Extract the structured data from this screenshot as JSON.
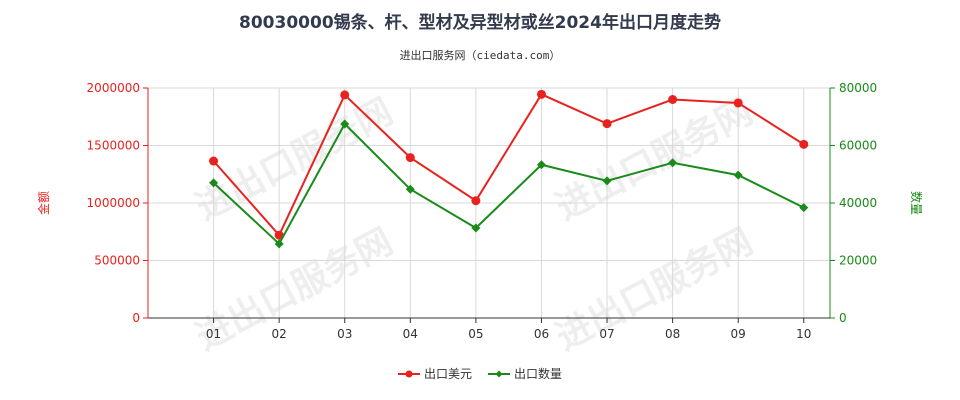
{
  "header": {
    "title": "80030000锡条、杆、型材及异型材或丝2024年出口月度走势",
    "subtitle": "进出口服务网（ciedata.com）"
  },
  "colors": {
    "amount": "#e8231f",
    "quantity": "#1a8a1a",
    "grid": "#d9d9d9",
    "axis_text": "#333333"
  },
  "watermark_text": "进出口服务网",
  "chart_data": {
    "type": "line",
    "categories": [
      "01",
      "02",
      "03",
      "04",
      "05",
      "06",
      "07",
      "08",
      "09",
      "10"
    ],
    "y_left": {
      "label": "金额",
      "min": 0,
      "max": 2000000,
      "ticks": [
        0,
        500000,
        1000000,
        1500000,
        2000000
      ]
    },
    "y_right": {
      "label": "数量",
      "min": 0,
      "max": 80000,
      "ticks": [
        0,
        20000,
        40000,
        60000,
        80000
      ]
    },
    "grid": true,
    "legend_position": "bottom",
    "series": [
      {
        "name": "出口美元",
        "axis": "left",
        "color": "#e8231f",
        "values": [
          1365000,
          720000,
          1940000,
          1395000,
          1020000,
          1945000,
          1690000,
          1900000,
          1870000,
          1510000
        ]
      },
      {
        "name": "出口数量",
        "axis": "right",
        "color": "#1a8a1a",
        "values": [
          47000,
          25800,
          67500,
          44800,
          31300,
          53300,
          47700,
          54000,
          49700,
          38400
        ]
      }
    ]
  }
}
